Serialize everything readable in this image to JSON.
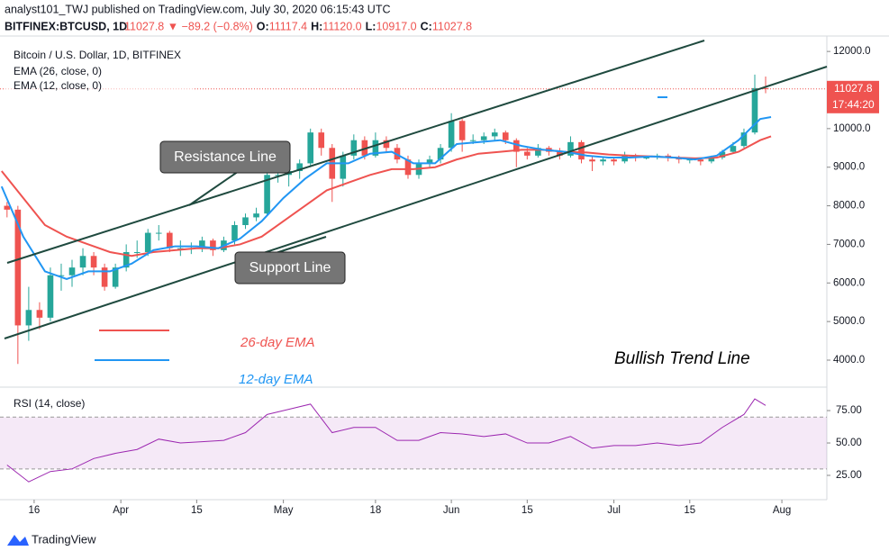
{
  "chart_data": {
    "type": "candlestick",
    "header": {
      "title": "analyst101_TWJ published on TradingView.com, July 30, 2020 06:15:43 UTC",
      "symbol": "BITFINEX:BTCUSD, 1D",
      "change": "11027.8 ▼ −89.2 (−0.8%)",
      "ohlc": [
        {
          "label": "O:",
          "value": "11117.4"
        },
        {
          "label": "H:",
          "value": "11120.0"
        },
        {
          "label": "L:",
          "value": "10917.0"
        },
        {
          "label": "C:",
          "value": "11027.8"
        }
      ]
    },
    "title": "Bitcoin / U.S. Dollar, 1D, BITFINEX",
    "up_color": "#26a69a",
    "down_color": "#ef5350",
    "x": [
      11,
      13,
      15,
      17,
      19,
      21,
      23,
      25,
      27,
      29,
      31,
      33,
      35,
      37,
      39,
      41,
      43,
      45,
      47,
      49,
      51,
      53,
      55,
      57,
      59,
      61,
      63,
      65,
      67,
      69,
      71,
      73,
      75,
      77,
      79,
      81,
      83,
      85,
      87,
      89,
      91,
      93,
      95,
      97,
      99,
      101,
      103,
      105,
      107,
      109,
      111,
      113,
      115,
      117,
      119,
      121,
      123,
      125,
      127,
      129,
      131,
      133,
      135,
      137,
      139,
      141,
      143,
      145,
      147,
      149,
      151
    ],
    "candles": [
      [
        8000,
        8100,
        7700,
        7900
      ],
      [
        7900,
        8000,
        3900,
        4900
      ],
      [
        4900,
        5900,
        4500,
        5300
      ],
      [
        5300,
        5500,
        4800,
        5100
      ],
      [
        5100,
        6400,
        5000,
        6200
      ],
      [
        6200,
        6500,
        5800,
        6200
      ],
      [
        6200,
        6600,
        5900,
        6400
      ],
      [
        6400,
        6900,
        6200,
        6700
      ],
      [
        6700,
        6800,
        6200,
        6400
      ],
      [
        6400,
        6500,
        5800,
        5900
      ],
      [
        5900,
        6500,
        5850,
        6400
      ],
      [
        6400,
        7000,
        6300,
        6800
      ],
      [
        6800,
        7100,
        6650,
        6800
      ],
      [
        6800,
        7400,
        6700,
        7300
      ],
      [
        7300,
        7500,
        7100,
        7300
      ],
      [
        7300,
        7350,
        6800,
        6900
      ],
      [
        6900,
        7100,
        6700,
        6900
      ],
      [
        6900,
        7050,
        6750,
        6900
      ],
      [
        6900,
        7200,
        6800,
        7100
      ],
      [
        7100,
        7150,
        6700,
        6850
      ],
      [
        6850,
        7200,
        6800,
        7100
      ],
      [
        7100,
        7600,
        7000,
        7500
      ],
      [
        7500,
        7800,
        7400,
        7700
      ],
      [
        7700,
        7950,
        7600,
        7800
      ],
      [
        7800,
        8950,
        7750,
        8800
      ],
      [
        8800,
        9400,
        8600,
        8800
      ],
      [
        8800,
        9100,
        8500,
        8900
      ],
      [
        8900,
        9200,
        8700,
        9100
      ],
      [
        9100,
        10000,
        9000,
        9900
      ],
      [
        9900,
        10000,
        9300,
        9500
      ],
      [
        9500,
        9600,
        8100,
        8700
      ],
      [
        8700,
        9400,
        8500,
        9300
      ],
      [
        9300,
        9850,
        9200,
        9700
      ],
      [
        9700,
        9800,
        9200,
        9300
      ],
      [
        9300,
        9900,
        9250,
        9700
      ],
      [
        9700,
        9800,
        9400,
        9500
      ],
      [
        9500,
        9600,
        9100,
        9200
      ],
      [
        9200,
        9300,
        8700,
        8800
      ],
      [
        8800,
        9200,
        8700,
        9100
      ],
      [
        9100,
        9300,
        9000,
        9200
      ],
      [
        9200,
        9600,
        9100,
        9500
      ],
      [
        9500,
        10400,
        9400,
        10200
      ],
      [
        10200,
        10250,
        9400,
        9700
      ],
      [
        9700,
        9850,
        9600,
        9700
      ],
      [
        9700,
        9900,
        9600,
        9800
      ],
      [
        9800,
        10000,
        9700,
        9900
      ],
      [
        9900,
        9950,
        9600,
        9700
      ],
      [
        9700,
        9750,
        9000,
        9400
      ],
      [
        9400,
        9500,
        9200,
        9300
      ],
      [
        9300,
        9600,
        9250,
        9500
      ],
      [
        9500,
        9550,
        9300,
        9400
      ],
      [
        9400,
        9500,
        9200,
        9300
      ],
      [
        9300,
        9800,
        9250,
        9650
      ],
      [
        9650,
        9700,
        9100,
        9200
      ],
      [
        9200,
        9300,
        8900,
        9150
      ],
      [
        9150,
        9250,
        9050,
        9200
      ],
      [
        9200,
        9250,
        9050,
        9150
      ],
      [
        9150,
        9400,
        9100,
        9300
      ],
      [
        9300,
        9350,
        9150,
        9250
      ],
      [
        9250,
        9300,
        9200,
        9250
      ],
      [
        9250,
        9350,
        9200,
        9300
      ],
      [
        9300,
        9350,
        9150,
        9250
      ],
      [
        9250,
        9300,
        9100,
        9200
      ],
      [
        9200,
        9250,
        9100,
        9200
      ],
      [
        9200,
        9250,
        9050,
        9150
      ],
      [
        9150,
        9300,
        9100,
        9250
      ],
      [
        9250,
        9450,
        9200,
        9400
      ],
      [
        9400,
        9650,
        9350,
        9550
      ],
      [
        9550,
        10000,
        9500,
        9900
      ],
      [
        9900,
        11400,
        9850,
        11050
      ],
      [
        11050,
        11350,
        10917,
        11027.8
      ]
    ],
    "series": [
      {
        "name": "EMA (26, close, 0)",
        "color": "#ef5350",
        "x": [
          10,
          14,
          18,
          22,
          26,
          30,
          34,
          38,
          42,
          46,
          50,
          54,
          58,
          62,
          66,
          70,
          74,
          78,
          82,
          86,
          90,
          94,
          98,
          102,
          106,
          110,
          114,
          118,
          122,
          126,
          130,
          134,
          138,
          142,
          146,
          150,
          152
        ],
        "values": [
          8900,
          8200,
          7500,
          7200,
          7000,
          6800,
          6700,
          6800,
          6850,
          6900,
          6900,
          7000,
          7200,
          7600,
          8000,
          8400,
          8600,
          8800,
          8950,
          8950,
          9000,
          9200,
          9350,
          9400,
          9450,
          9450,
          9400,
          9380,
          9330,
          9300,
          9280,
          9250,
          9230,
          9250,
          9400,
          9700,
          9800
        ]
      },
      {
        "name": "EMA (12, close, 0)",
        "color": "#2196f3",
        "x": [
          10,
          14,
          18,
          22,
          26,
          30,
          34,
          38,
          42,
          46,
          50,
          54,
          58,
          62,
          66,
          70,
          74,
          78,
          82,
          86,
          90,
          94,
          98,
          102,
          106,
          110,
          114,
          118,
          122,
          126,
          130,
          134,
          138,
          142,
          146,
          150,
          152
        ],
        "values": [
          8500,
          7200,
          6300,
          6100,
          6300,
          6300,
          6500,
          6850,
          6950,
          6950,
          6900,
          7150,
          7600,
          8200,
          8700,
          9100,
          9100,
          9350,
          9400,
          9100,
          9100,
          9600,
          9650,
          9700,
          9550,
          9450,
          9400,
          9300,
          9250,
          9250,
          9280,
          9250,
          9200,
          9300,
          9700,
          10250,
          10300
        ]
      }
    ],
    "last_price": 11027.8,
    "countdown": "17:44:20",
    "xlim": [
      9.7,
      162.3
    ],
    "ylim": [
      3300,
      12400
    ],
    "xticks": [
      {
        "value": 16,
        "label": "16"
      },
      {
        "value": 32,
        "label": "Apr"
      },
      {
        "value": 46,
        "label": "15"
      },
      {
        "value": 62,
        "label": "May"
      },
      {
        "value": 79,
        "label": "18"
      },
      {
        "value": 93,
        "label": "Jun"
      },
      {
        "value": 107,
        "label": "15"
      },
      {
        "value": 123,
        "label": "Jul"
      },
      {
        "value": 137,
        "label": "15"
      },
      {
        "value": 154,
        "label": "Aug"
      }
    ],
    "yticks": [
      {
        "value": 4000,
        "label": "4000.0"
      },
      {
        "value": 5000,
        "label": "5000.0"
      },
      {
        "value": 6000,
        "label": "6000.0"
      },
      {
        "value": 7000,
        "label": "7000.0"
      },
      {
        "value": 8000,
        "label": "8000.0"
      },
      {
        "value": 9000,
        "label": "9000.0"
      },
      {
        "value": 10000,
        "label": "10000.0"
      },
      {
        "value": 11000,
        "label": "11000.0"
      },
      {
        "value": 12000,
        "label": "12000.0"
      }
    ],
    "rsi": {
      "name": "RSI (14, close)",
      "color": "#9c27b0",
      "x": [
        11,
        15,
        19,
        23,
        27,
        31,
        35,
        39,
        43,
        47,
        51,
        55,
        59,
        63,
        67,
        71,
        75,
        79,
        83,
        87,
        91,
        95,
        99,
        103,
        107,
        111,
        115,
        119,
        123,
        127,
        131,
        135,
        139,
        143,
        147,
        149,
        151
      ],
      "values": [
        33,
        20,
        28,
        30,
        38,
        42,
        45,
        53,
        50,
        51,
        52,
        58,
        72,
        76,
        80,
        58,
        62,
        62,
        52,
        52,
        58,
        57,
        55,
        57,
        50,
        50,
        55,
        46,
        48,
        48,
        50,
        48,
        50,
        62,
        72,
        84,
        79
      ],
      "ylim": [
        6.25,
        91.7
      ],
      "band": [
        30,
        70
      ],
      "yticks": [
        {
          "value": 25,
          "label": "25.00"
        },
        {
          "value": 50,
          "label": "50.00"
        },
        {
          "value": 75,
          "label": "75.00"
        }
      ]
    },
    "annotations": {
      "resistance": "Resistance Line",
      "support": "Support Line",
      "ema26": "26-day EMA",
      "ema12": "12-day EMA",
      "trend": "Bullish Trend Line"
    },
    "brand": "TradingView"
  }
}
